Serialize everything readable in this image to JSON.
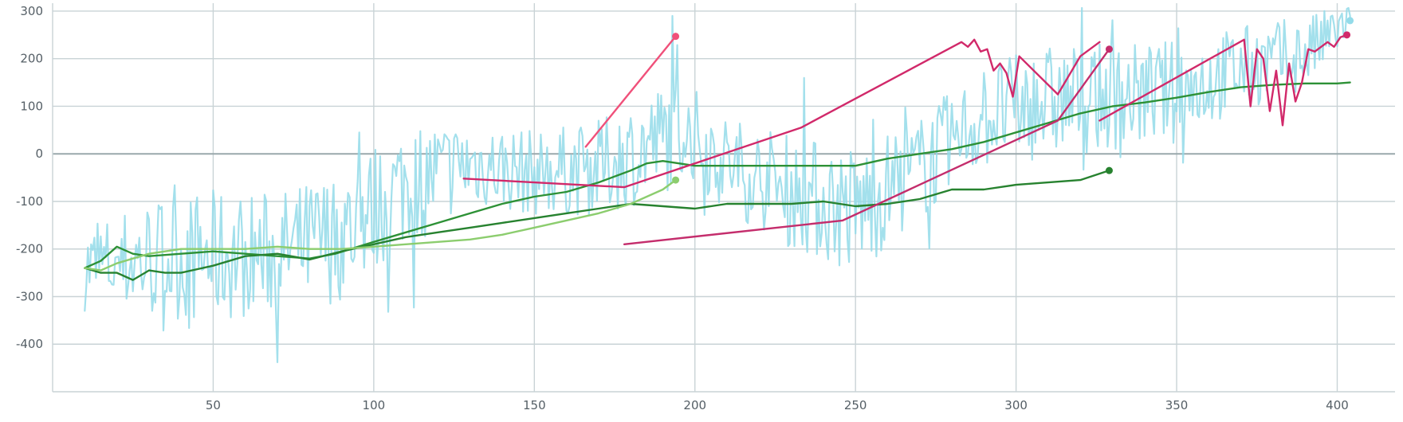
{
  "chart_data": {
    "type": "line",
    "title": "",
    "xlabel": "",
    "ylabel": "",
    "xlim": [
      0,
      418
    ],
    "ylim": [
      -500,
      310
    ],
    "x_ticks": [
      50,
      100,
      150,
      200,
      250,
      300,
      350,
      400
    ],
    "y_ticks": [
      300,
      200,
      100,
      0,
      -100,
      -200,
      -300,
      -400
    ],
    "grid": true,
    "legend": "none",
    "series": [
      {
        "color": "#93dbe9",
        "stroke_width": 2.2,
        "noisy": true,
        "end_marker": true,
        "x": [
          10,
          30,
          50,
          70,
          90,
          110,
          130,
          150,
          170,
          190,
          195,
          210,
          230,
          250,
          270,
          290,
          310,
          330,
          350,
          370,
          390,
          404
        ],
        "values": [
          -240,
          -220,
          -215,
          -210,
          -170,
          -60,
          -20,
          -40,
          -30,
          30,
          60,
          -20,
          -80,
          -120,
          -30,
          80,
          110,
          120,
          130,
          180,
          210,
          280
        ],
        "amplitude": [
          90,
          130,
          140,
          130,
          140,
          130,
          90,
          90,
          100,
          120,
          110,
          100,
          120,
          140,
          110,
          110,
          120,
          110,
          110,
          90,
          80,
          40
        ]
      },
      {
        "color": "#2d9136",
        "stroke_width": 2.4,
        "end_marker": false,
        "x": [
          10,
          15,
          20,
          25,
          30,
          40,
          50,
          60,
          70,
          80,
          88,
          100,
          110,
          120,
          130,
          140,
          150,
          160,
          170,
          180,
          185,
          190,
          200,
          210,
          220,
          230,
          240,
          250,
          260,
          270,
          280,
          290,
          300,
          310,
          320,
          330,
          340,
          350,
          360,
          370,
          380,
          390,
          400,
          404
        ],
        "values": [
          -240,
          -225,
          -195,
          -210,
          -215,
          -210,
          -205,
          -210,
          -215,
          -220,
          -210,
          -185,
          -165,
          -145,
          -125,
          -105,
          -90,
          -80,
          -60,
          -35,
          -20,
          -15,
          -25,
          -25,
          -25,
          -25,
          -25,
          -25,
          -10,
          0,
          10,
          25,
          45,
          65,
          85,
          100,
          108,
          118,
          130,
          140,
          145,
          148,
          148,
          150
        ]
      },
      {
        "color": "#27822f",
        "stroke_width": 2.4,
        "end_marker": true,
        "x": [
          10,
          15,
          20,
          25,
          30,
          35,
          40,
          50,
          60,
          70,
          80,
          90,
          100,
          110,
          120,
          130,
          140,
          150,
          160,
          170,
          180,
          190,
          200,
          210,
          220,
          230,
          240,
          250,
          260,
          270,
          280,
          290,
          300,
          310,
          320,
          329
        ],
        "values": [
          -240,
          -250,
          -250,
          -265,
          -245,
          -250,
          -250,
          -235,
          -215,
          -210,
          -222,
          -205,
          -190,
          -175,
          -165,
          -155,
          -145,
          -135,
          -125,
          -115,
          -105,
          -110,
          -115,
          -105,
          -105,
          -105,
          -100,
          -110,
          -105,
          -95,
          -75,
          -75,
          -65,
          -60,
          -55,
          -35
        ]
      },
      {
        "color": "#8ccd6e",
        "stroke_width": 2.4,
        "end_marker": true,
        "x": [
          10,
          15,
          20,
          30,
          40,
          50,
          60,
          70,
          80,
          90,
          100,
          110,
          120,
          130,
          140,
          150,
          160,
          170,
          180,
          190,
          194
        ],
        "values": [
          -240,
          -245,
          -230,
          -210,
          -200,
          -200,
          -200,
          -195,
          -200,
          -200,
          -195,
          -190,
          -185,
          -180,
          -170,
          -155,
          -140,
          -125,
          -105,
          -75,
          -55
        ]
      },
      {
        "color": "#f0507a",
        "stroke_width": 2.4,
        "end_marker": true,
        "x": [
          166,
          194
        ],
        "values": [
          15,
          247
        ]
      },
      {
        "color": "#d1296a",
        "stroke_width": 2.4,
        "end_marker": false,
        "x": [
          128,
          178,
          233,
          283,
          285,
          287,
          289,
          291,
          293,
          295,
          297,
          299,
          301,
          313,
          320,
          326
        ],
        "values": [
          -52,
          -70,
          55,
          235,
          225,
          240,
          215,
          220,
          175,
          190,
          170,
          120,
          205,
          125,
          205,
          235
        ]
      },
      {
        "color": "#c42d6c",
        "stroke_width": 2.4,
        "end_marker": true,
        "x": [
          178,
          246,
          313,
          329
        ],
        "values": [
          -190,
          -140,
          70,
          220
        ]
      },
      {
        "color": "#d1296a",
        "stroke_width": 2.4,
        "end_marker": true,
        "x": [
          326,
          371,
          373,
          375,
          377,
          379,
          381,
          383,
          385,
          387,
          389,
          391,
          393,
          395,
          397,
          399,
          401,
          403
        ],
        "values": [
          70,
          240,
          100,
          220,
          200,
          90,
          175,
          60,
          190,
          110,
          150,
          220,
          215,
          225,
          235,
          225,
          245,
          250
        ]
      }
    ]
  }
}
